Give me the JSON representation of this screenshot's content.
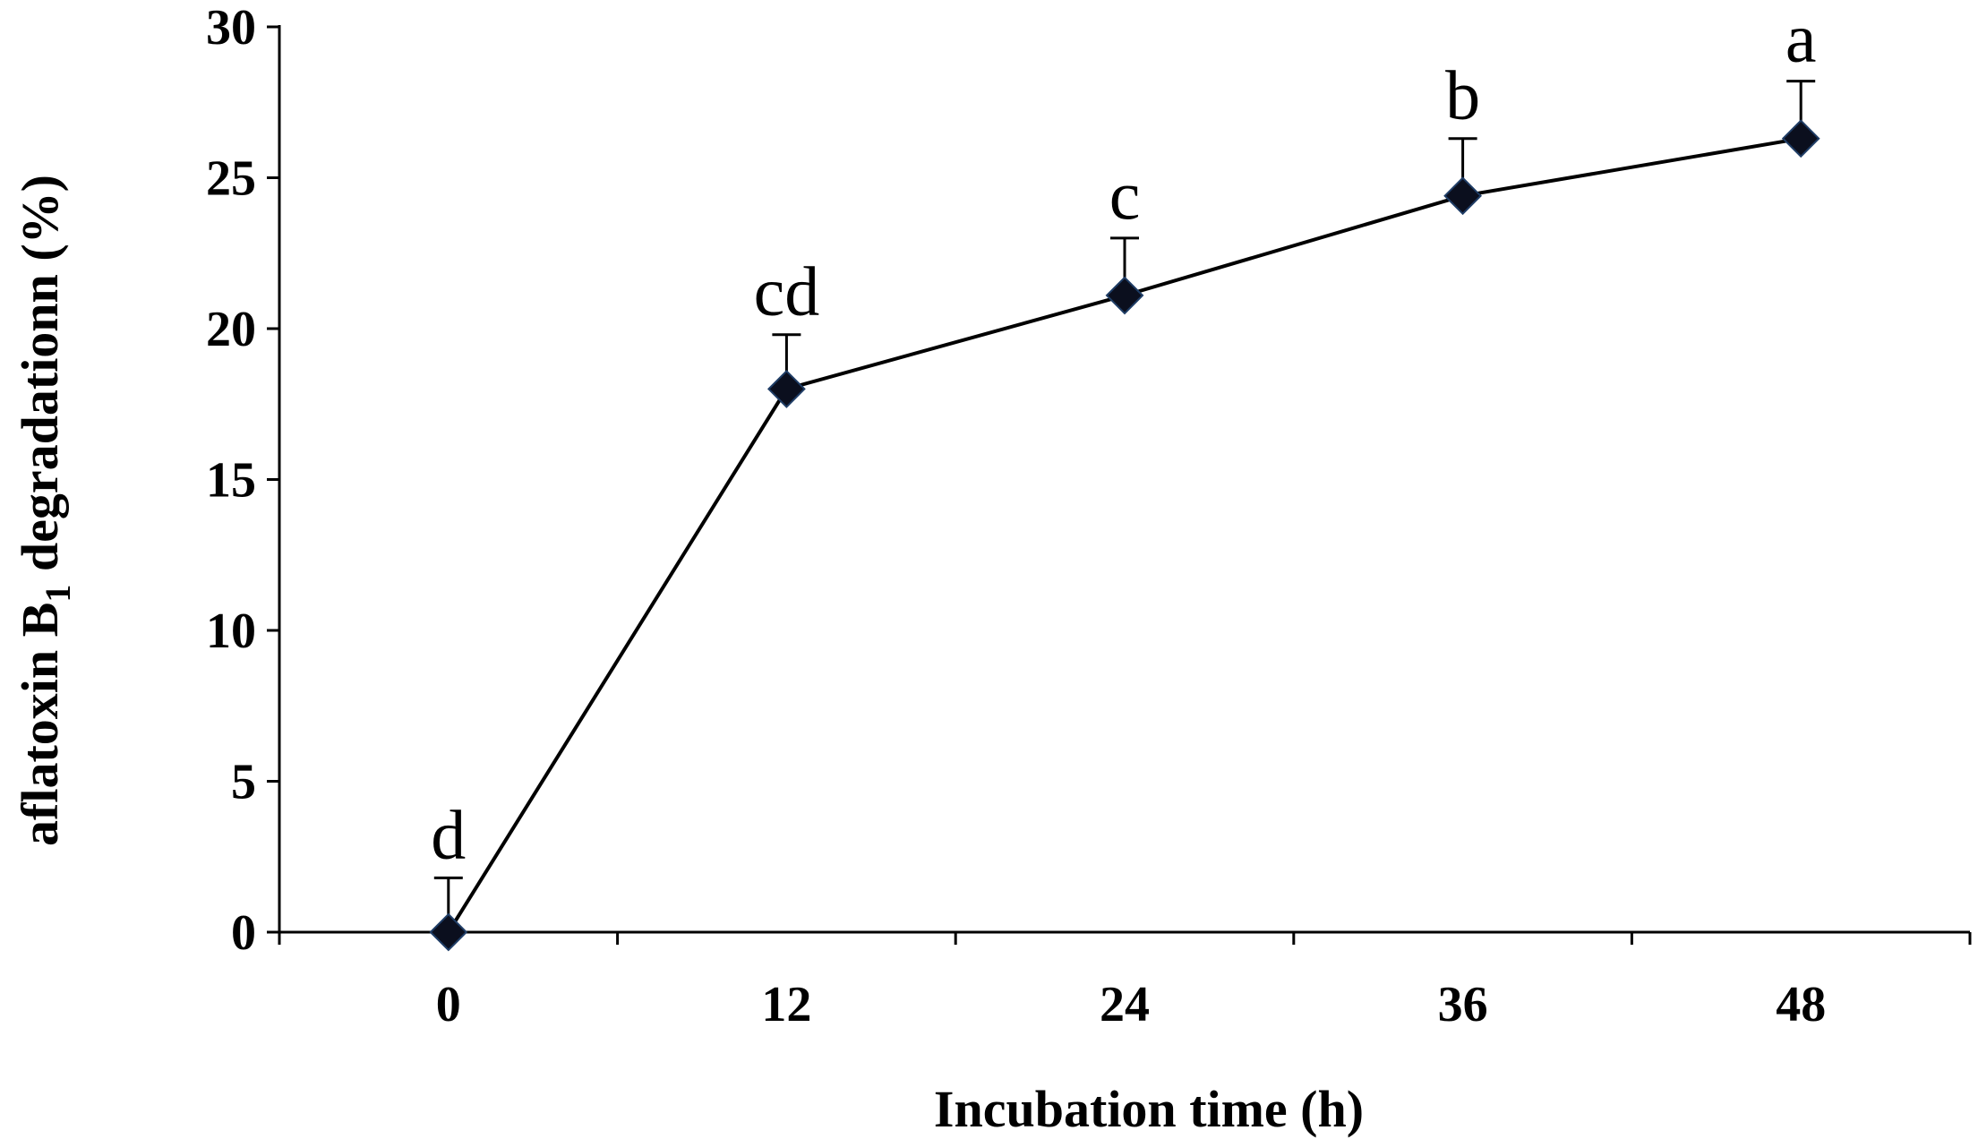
{
  "chart_data": {
    "type": "line",
    "title": "",
    "xlabel": "Incubation time (h)",
    "ylabel_main": "aflatoxin B",
    "ylabel_sub": "1",
    "ylabel_end": " degradationn  (%)",
    "x": [
      0,
      12,
      24,
      36,
      48
    ],
    "x_tick_labels": [
      "0",
      "12",
      "24",
      "36",
      "48"
    ],
    "y_tick_labels": [
      "0",
      "5",
      "10",
      "15",
      "20",
      "25",
      "30"
    ],
    "ylim": [
      0,
      30
    ],
    "y_ticks": [
      0,
      5,
      10,
      15,
      20,
      25,
      30
    ],
    "x_categories_count": 5,
    "grid": false,
    "legend": "none",
    "marker": "diamond",
    "color": "#000000",
    "series": [
      {
        "values": [
          0,
          18,
          21.1,
          24.4,
          26.3
        ],
        "error_upper": [
          1.8,
          1.8,
          1.9,
          1.9,
          1.9
        ],
        "significance": [
          "d",
          "cd",
          "c",
          "b",
          "a"
        ]
      }
    ]
  }
}
